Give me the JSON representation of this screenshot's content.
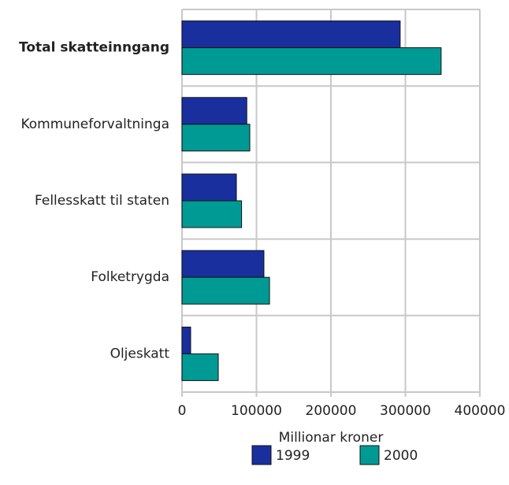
{
  "chart_data": {
    "type": "hbar",
    "categories": [
      "Total skatteinngang",
      "Kommuneforvaltninga",
      "Fellesskatt til staten",
      "Folketrygda",
      "Oljeskatt"
    ],
    "series": [
      {
        "name": "1999",
        "color": "#1a2f9e",
        "values": [
          293000,
          87000,
          73000,
          110000,
          11600
        ]
      },
      {
        "name": "2000",
        "color": "#009a94",
        "values": [
          348000,
          91000,
          80000,
          117500,
          48700
        ]
      }
    ],
    "xlabel": "Millionar kroner",
    "xlim": [
      0,
      400000
    ],
    "xticks": [
      0,
      100000,
      200000,
      300000,
      400000
    ],
    "grid": true
  }
}
